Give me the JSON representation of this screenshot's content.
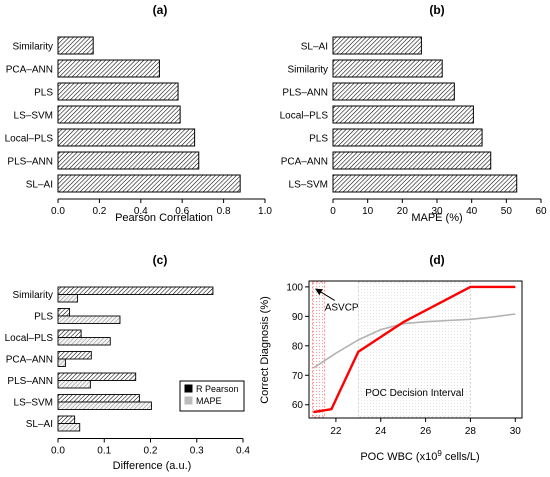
{
  "chart_data": [
    {
      "panel": "(a)",
      "type": "bar",
      "orientation": "horizontal",
      "categories": [
        "Similarity",
        "PCA–ANN",
        "PLS",
        "LS–SVM",
        "Local–PLS",
        "PLS–ANN",
        "SL–AI"
      ],
      "values": [
        0.17,
        0.49,
        0.58,
        0.59,
        0.66,
        0.68,
        0.88
      ],
      "xlabel": "Pearson Correlation",
      "xlim": [
        0,
        1.0
      ],
      "xticks": [
        0.0,
        0.2,
        0.4,
        0.6,
        0.8,
        1.0
      ],
      "xtick_labels": [
        "0.0",
        "0.2",
        "0.4",
        "0.6",
        "0.8",
        "1.0"
      ],
      "fill": "hatched"
    },
    {
      "panel": "(b)",
      "type": "bar",
      "orientation": "horizontal",
      "categories": [
        "SL–AI",
        "Similarity",
        "PLS–ANN",
        "Local–PLS",
        "PLS",
        "PCA–ANN",
        "LS–SVM"
      ],
      "values": [
        25.5,
        31.5,
        35,
        40.5,
        43,
        45.5,
        53
      ],
      "xlabel": "MAPE (%)",
      "xlim": [
        0,
        60
      ],
      "xticks": [
        0,
        10,
        20,
        30,
        40,
        50,
        60
      ],
      "xtick_labels": [
        "0",
        "10",
        "20",
        "30",
        "40",
        "50",
        "60"
      ],
      "fill": "hatched"
    },
    {
      "panel": "(c)",
      "type": "bar",
      "orientation": "horizontal",
      "categories": [
        "Similarity",
        "PLS",
        "Local–PLS",
        "PCA–ANN",
        "PLS–ANN",
        "LS–SVM",
        "SL–AI"
      ],
      "series": [
        {
          "name": "R Pearson",
          "values": [
            0.335,
            0.025,
            0.05,
            0.072,
            0.168,
            0.176,
            0.036
          ],
          "color": "#000000"
        },
        {
          "name": "MAPE",
          "values": [
            0.042,
            0.134,
            0.113,
            0.016,
            0.07,
            0.202,
            0.047
          ],
          "color": "#bbbbbb"
        }
      ],
      "xlabel": "Difference (a.u.)",
      "xlim": [
        0,
        0.4
      ],
      "xticks": [
        0.0,
        0.1,
        0.2,
        0.3,
        0.4
      ],
      "xtick_labels": [
        "0.0",
        "0.1",
        "0.2",
        "0.3",
        "0.4"
      ],
      "legend_position": "bottom-right"
    },
    {
      "panel": "(d)",
      "type": "line",
      "xlabel_prefix": "POC WBC (x10",
      "xlabel_sup": "9",
      "xlabel_suffix": " cells/L)",
      "ylabel": "Correct Diagnosis (%)",
      "xlim": [
        20.8,
        30.3
      ],
      "ylim": [
        55.5,
        102
      ],
      "xticks": [
        22,
        24,
        26,
        28,
        30
      ],
      "xtick_labels": [
        "22",
        "24",
        "26",
        "28",
        "30"
      ],
      "yticks": [
        60,
        70,
        80,
        90,
        100
      ],
      "ytick_labels": [
        "60",
        "70",
        "80",
        "90",
        "100"
      ],
      "series": [
        {
          "x": [
            21.0,
            21.8,
            23.0,
            25.0,
            28.0,
            30.0
          ],
          "y": [
            57.5,
            58.5,
            78.0,
            88.0,
            100.0,
            100.0
          ],
          "color": "#ff0000"
        },
        {
          "x": [
            21.0,
            22.0,
            23.0,
            24.0,
            25.0,
            26.0,
            27.0,
            28.0,
            29.0,
            30.0
          ],
          "y": [
            72.5,
            77.5,
            82.0,
            85.5,
            87.5,
            88.2,
            88.6,
            89.0,
            89.8,
            90.8
          ],
          "color": "#b3b3b3"
        }
      ],
      "regions": [
        {
          "x": [
            20.95,
            21.5
          ],
          "style": "red-dotted"
        },
        {
          "x": [
            23.0,
            28.0
          ],
          "style": "grey-dotted"
        }
      ],
      "annotations": [
        {
          "text": "ASVCP",
          "x": 21.5,
          "y": 92,
          "arrow_to": [
            21.1,
            99.3
          ]
        },
        {
          "text": "POC Decision Interval",
          "x": 25.5,
          "y": 63
        }
      ]
    }
  ]
}
